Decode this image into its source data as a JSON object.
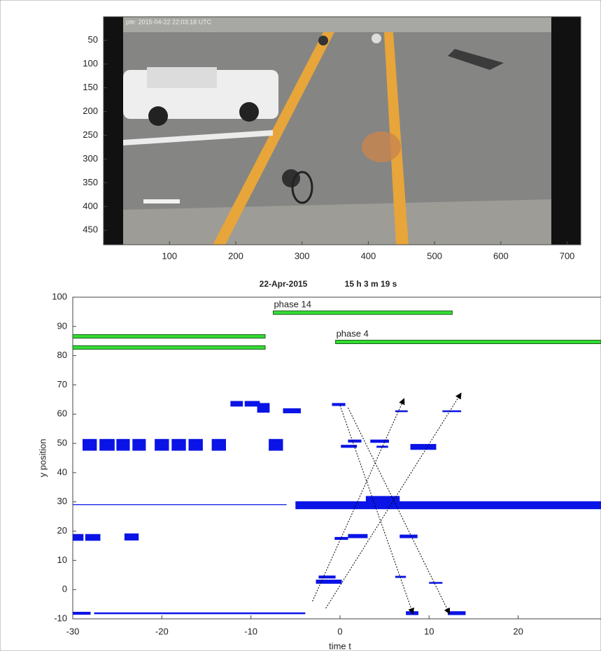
{
  "chart_data": [
    {
      "type": "image",
      "caption": "pte: 2015-04-22 22:03:18 UTC",
      "xlim": [
        0.5,
        720.5
      ],
      "ylim": [
        0.5,
        480.5
      ],
      "y_reversed": true,
      "xticks": [
        100,
        200,
        300,
        400,
        500,
        600,
        700
      ],
      "yticks": [
        50,
        100,
        150,
        200,
        250,
        300,
        350,
        400,
        450
      ]
    },
    {
      "type": "timeline",
      "title": [
        "22-Apr-2015",
        "15 h 3 m 19 s"
      ],
      "xlabel": "time t",
      "ylabel": "y position",
      "xlim": [
        -30,
        29.3
      ],
      "ylim": [
        -10,
        100
      ],
      "xticks": [
        -30,
        -20,
        -10,
        0,
        10,
        20
      ],
      "yticks": [
        -10,
        0,
        10,
        20,
        30,
        40,
        50,
        60,
        70,
        80,
        90,
        100
      ],
      "phase_color": "#33dd33",
      "phases": [
        {
          "label": "phase 14",
          "t": [
            -7.5,
            12.6
          ],
          "y": 94.7
        },
        {
          "t": [
            -30,
            -8.4
          ],
          "y": 86.6
        },
        {
          "t": [
            -30,
            -8.4
          ],
          "y": 82.8
        },
        {
          "label": "phase 4",
          "t": [
            -0.5,
            29.3
          ],
          "y": 84.7
        }
      ],
      "bar_color": "#0a14e6",
      "bars": [
        {
          "t": [
            -12.3,
            -10.9
          ],
          "y": [
            62.6,
            64.5
          ]
        },
        {
          "t": [
            -10.7,
            -9.0
          ],
          "y": [
            62.6,
            64.5
          ]
        },
        {
          "t": [
            -9.3,
            -7.9
          ],
          "y": [
            60.5,
            63.8
          ]
        },
        {
          "t": [
            -6.4,
            -4.4
          ],
          "y": [
            60.3,
            62.0
          ]
        },
        {
          "t": [
            -0.9,
            0.6
          ],
          "y": [
            62.8,
            63.8
          ]
        },
        {
          "t": [
            6.2,
            7.6
          ],
          "y": [
            60.7,
            61.3
          ]
        },
        {
          "t": [
            11.5,
            13.6
          ],
          "y": [
            60.7,
            61.3
          ]
        },
        {
          "t": [
            -28.9,
            -27.3
          ],
          "y": [
            47.5,
            51.5
          ]
        },
        {
          "t": [
            -27.0,
            -25.3
          ],
          "y": [
            47.5,
            51.5
          ]
        },
        {
          "t": [
            -25.1,
            -23.6
          ],
          "y": [
            47.5,
            51.5
          ]
        },
        {
          "t": [
            -23.3,
            -21.8
          ],
          "y": [
            47.5,
            51.5
          ]
        },
        {
          "t": [
            -20.8,
            -19.2
          ],
          "y": [
            47.5,
            51.5
          ]
        },
        {
          "t": [
            -18.9,
            -17.3
          ],
          "y": [
            47.5,
            51.5
          ]
        },
        {
          "t": [
            -17.0,
            -15.4
          ],
          "y": [
            47.5,
            51.5
          ]
        },
        {
          "t": [
            -14.4,
            -12.8
          ],
          "y": [
            47.5,
            51.5
          ]
        },
        {
          "t": [
            -8.0,
            -6.4
          ],
          "y": [
            47.5,
            51.5
          ]
        },
        {
          "t": [
            0.1,
            1.9
          ],
          "y": [
            48.5,
            49.5
          ]
        },
        {
          "t": [
            0.9,
            2.4
          ],
          "y": [
            50.3,
            51.3
          ]
        },
        {
          "t": [
            3.4,
            5.5
          ],
          "y": [
            50.2,
            51.3
          ]
        },
        {
          "t": [
            4.1,
            5.4
          ],
          "y": [
            48.5,
            49.2
          ]
        },
        {
          "t": [
            7.9,
            10.8
          ],
          "y": [
            47.8,
            49.8
          ]
        },
        {
          "t": [
            -30,
            -6.0
          ],
          "y": [
            28.9,
            29.2
          ]
        },
        {
          "t": [
            -5.0,
            29.3
          ],
          "y": [
            27.5,
            30.2
          ]
        },
        {
          "t": [
            2.9,
            6.7
          ],
          "y": [
            29.5,
            32.0
          ]
        },
        {
          "t": [
            -30,
            -28.8
          ],
          "y": [
            16.7,
            19.0
          ]
        },
        {
          "t": [
            -28.6,
            -26.9
          ],
          "y": [
            16.7,
            19.0
          ]
        },
        {
          "t": [
            -24.2,
            -22.6
          ],
          "y": [
            16.8,
            19.2
          ]
        },
        {
          "t": [
            -0.6,
            0.9
          ],
          "y": [
            17.0,
            18.0
          ]
        },
        {
          "t": [
            0.9,
            3.1
          ],
          "y": [
            17.6,
            19.0
          ]
        },
        {
          "t": [
            6.7,
            8.7
          ],
          "y": [
            17.6,
            18.8
          ]
        },
        {
          "t": [
            -2.4,
            -0.5
          ],
          "y": [
            3.8,
            4.8
          ]
        },
        {
          "t": [
            -2.7,
            0.2
          ],
          "y": [
            2.0,
            3.4
          ]
        },
        {
          "t": [
            6.2,
            7.4
          ],
          "y": [
            4.0,
            4.7
          ]
        },
        {
          "t": [
            10.0,
            11.5
          ],
          "y": [
            2.0,
            2.6
          ]
        },
        {
          "t": [
            -30,
            -28.0
          ],
          "y": [
            -8.6,
            -7.6
          ]
        },
        {
          "t": [
            -27.6,
            -3.9
          ],
          "y": [
            -8.4,
            -7.8
          ]
        },
        {
          "t": [
            7.4,
            8.8
          ],
          "y": [
            -8.7,
            -7.4
          ]
        },
        {
          "t": [
            12.1,
            14.1
          ],
          "y": [
            -8.7,
            -7.4
          ]
        }
      ],
      "arrows": [
        {
          "t": [
            0.0,
            8.2
          ],
          "y": [
            63.0,
            -8.3
          ]
        },
        {
          "t": [
            0.9,
            12.3
          ],
          "y": [
            62.2,
            -8.3
          ]
        },
        {
          "t": [
            -3.1,
            7.2
          ],
          "y": [
            -4.0,
            65.3
          ]
        },
        {
          "t": [
            -1.6,
            13.6
          ],
          "y": [
            -6.4,
            67.2
          ]
        }
      ]
    }
  ]
}
